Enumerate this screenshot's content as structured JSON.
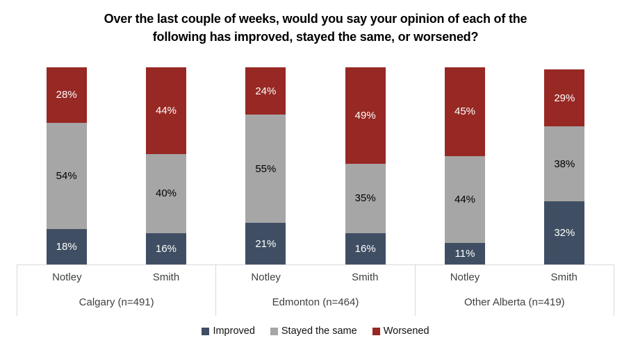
{
  "title_lines": [
    "Over the last couple of weeks, would you say your opinion of each of the",
    "following has improved, stayed the same, or worsened?"
  ],
  "chart_data": {
    "type": "bar",
    "subtype": "stacked-column-100",
    "title": "Over the last couple of weeks, would you say your opinion of each of the following has improved, stayed the same, or worsened?",
    "value_suffix": "%",
    "ylim": [
      0,
      100
    ],
    "grid": false,
    "legend_position": "bottom",
    "series": [
      {
        "name": "Improved",
        "color": "#3f4e63",
        "label_color": "#ffffff"
      },
      {
        "name": "Stayed the same",
        "color": "#a6a6a6",
        "label_color": "#000000"
      },
      {
        "name": "Worsened",
        "color": "#972823",
        "label_color": "#ffffff"
      }
    ],
    "groups": [
      {
        "label": "Calgary (n=491)",
        "bars": [
          {
            "label": "Notley",
            "values": {
              "Improved": 18,
              "Stayed the same": 54,
              "Worsened": 28
            }
          },
          {
            "label": "Smith",
            "values": {
              "Improved": 16,
              "Stayed the same": 40,
              "Worsened": 44
            }
          }
        ]
      },
      {
        "label": "Edmonton (n=464)",
        "bars": [
          {
            "label": "Notley",
            "values": {
              "Improved": 21,
              "Stayed the same": 55,
              "Worsened": 24
            }
          },
          {
            "label": "Smith",
            "values": {
              "Improved": 16,
              "Stayed the same": 35,
              "Worsened": 49
            }
          }
        ]
      },
      {
        "label": "Other Alberta (n=419)",
        "bars": [
          {
            "label": "Notley",
            "values": {
              "Improved": 11,
              "Stayed the same": 44,
              "Worsened": 45
            }
          },
          {
            "label": "Smith",
            "values": {
              "Improved": 32,
              "Stayed the same": 38,
              "Worsened": 29
            }
          }
        ]
      }
    ],
    "axis_colors": {
      "line": "#d9d9d9",
      "text": "#3f3f3f"
    }
  }
}
